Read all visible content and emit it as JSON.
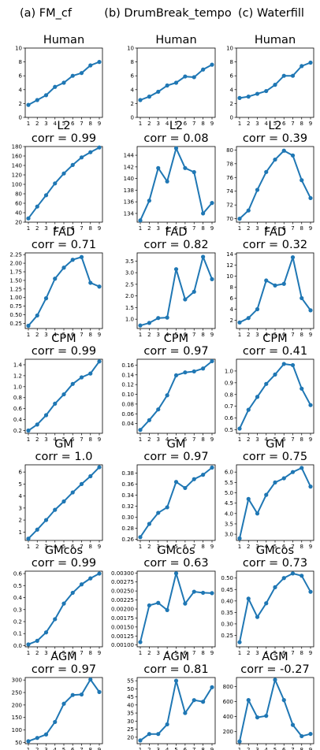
{
  "columns": [
    "(a) FM_cf",
    "(b) DrumBreak_tempo",
    "(c) Waterfill"
  ],
  "chart_data": [
    {
      "type": "line",
      "column": "(a) FM_cf",
      "title": "Human",
      "corr": "",
      "x": [
        1,
        2,
        3,
        4,
        5,
        6,
        7,
        8,
        9
      ],
      "values": [
        1.8,
        2.5,
        3.2,
        4.4,
        5.0,
        6.0,
        6.4,
        7.5,
        8.0
      ],
      "ylim": [
        0,
        10
      ],
      "yticks": [
        "0",
        "2",
        "4",
        "6",
        "8",
        "10"
      ],
      "ytick_values": [
        0,
        2,
        4,
        6,
        8,
        10
      ],
      "xticks": [
        "1",
        "2",
        "3",
        "4",
        "5",
        "6",
        "7",
        "8",
        "9"
      ],
      "color": "#1f77b4"
    },
    {
      "type": "line",
      "column": "(b) DrumBreak_tempo",
      "title": "Human",
      "corr": "",
      "x": [
        1,
        2,
        3,
        4,
        5,
        6,
        7,
        8,
        9
      ],
      "values": [
        2.5,
        3.0,
        3.7,
        4.6,
        5.0,
        5.9,
        5.8,
        6.9,
        7.6
      ],
      "ylim": [
        0,
        10
      ],
      "yticks": [
        "0",
        "2",
        "4",
        "6",
        "8",
        "10"
      ],
      "ytick_values": [
        0,
        2,
        4,
        6,
        8,
        10
      ],
      "xticks": [
        "1",
        "2",
        "3",
        "4",
        "5",
        "6",
        "7",
        "8",
        "9"
      ],
      "color": "#1f77b4"
    },
    {
      "type": "line",
      "column": "(c) Waterfill",
      "title": "Human",
      "corr": "",
      "x": [
        1,
        2,
        3,
        4,
        5,
        6,
        7,
        8,
        9
      ],
      "values": [
        2.8,
        3.0,
        3.4,
        3.8,
        4.7,
        6.0,
        6.0,
        7.4,
        7.9
      ],
      "ylim": [
        0,
        10
      ],
      "yticks": [
        "0",
        "2",
        "4",
        "6",
        "8",
        "10"
      ],
      "ytick_values": [
        0,
        2,
        4,
        6,
        8,
        10
      ],
      "xticks": [
        "1",
        "2",
        "3",
        "4",
        "5",
        "6",
        "7",
        "8",
        "9"
      ],
      "color": "#1f77b4"
    },
    {
      "type": "line",
      "column": "(a) FM_cf",
      "title": "L2",
      "corr": "corr = 0.99",
      "x": [
        1,
        2,
        3,
        4,
        5,
        6,
        7,
        8,
        9
      ],
      "values": [
        28,
        53,
        77,
        102,
        123,
        141,
        157,
        168,
        178
      ],
      "ylim": [
        20,
        180
      ],
      "yticks": [
        "20",
        "40",
        "60",
        "80",
        "100",
        "120",
        "140",
        "160",
        "180"
      ],
      "ytick_values": [
        20,
        40,
        60,
        80,
        100,
        120,
        140,
        160,
        180
      ],
      "xticks": [
        "1",
        "2",
        "3",
        "4",
        "5",
        "6",
        "7",
        "8",
        "9"
      ],
      "color": "#1f77b4"
    },
    {
      "type": "line",
      "column": "(b) DrumBreak_tempo",
      "title": "L2",
      "corr": "corr = 0.08",
      "x": [
        1,
        2,
        3,
        4,
        5,
        6,
        7,
        8,
        9
      ],
      "values": [
        132.8,
        136.2,
        141.8,
        139.5,
        145.2,
        141.8,
        141.1,
        134.0,
        135.8
      ],
      "ylim": [
        132.5,
        145.5
      ],
      "yticks": [
        "134",
        "136",
        "138",
        "140",
        "142",
        "144"
      ],
      "ytick_values": [
        134,
        136,
        138,
        140,
        142,
        144
      ],
      "xticks": [
        "1",
        "2",
        "3",
        "4",
        "5",
        "6",
        "7",
        "8",
        "9"
      ],
      "color": "#1f77b4"
    },
    {
      "type": "line",
      "column": "(c) Waterfill",
      "title": "L2",
      "corr": "corr = 0.39",
      "x": [
        1,
        2,
        3,
        4,
        5,
        6,
        7,
        8,
        9
      ],
      "values": [
        70.0,
        71.2,
        74.2,
        76.8,
        78.6,
        79.9,
        79.2,
        75.6,
        73.0
      ],
      "ylim": [
        69.5,
        80.5
      ],
      "yticks": [
        "70",
        "72",
        "74",
        "76",
        "78",
        "80"
      ],
      "ytick_values": [
        70,
        72,
        74,
        76,
        78,
        80
      ],
      "xticks": [
        "1",
        "2",
        "3",
        "4",
        "5",
        "6",
        "7",
        "8",
        "9"
      ],
      "color": "#1f77b4"
    },
    {
      "type": "line",
      "column": "(a) FM_cf",
      "title": "FAD",
      "corr": "corr = 0.71",
      "x": [
        1,
        2,
        3,
        4,
        5,
        6,
        7,
        8,
        9
      ],
      "values": [
        0.18,
        0.48,
        0.98,
        1.55,
        1.87,
        2.1,
        2.18,
        1.43,
        1.32
      ],
      "ylim": [
        0.1,
        2.3
      ],
      "yticks": [
        "0.25",
        "0.50",
        "0.75",
        "1.00",
        "1.25",
        "1.50",
        "1.75",
        "2.00",
        "2.25"
      ],
      "ytick_values": [
        0.25,
        0.5,
        0.75,
        1.0,
        1.25,
        1.5,
        1.75,
        2.0,
        2.25
      ],
      "xticks": [
        "1",
        "2",
        "3",
        "4",
        "5",
        "6",
        "7",
        "8",
        "9"
      ],
      "color": "#1f77b4"
    },
    {
      "type": "line",
      "column": "(b) DrumBreak_tempo",
      "title": "FAD",
      "corr": "corr = 0.82",
      "x": [
        1,
        2,
        3,
        4,
        5,
        6,
        7,
        8,
        9
      ],
      "values": [
        0.73,
        0.84,
        1.05,
        1.07,
        3.15,
        1.85,
        2.18,
        3.68,
        2.72
      ],
      "ylim": [
        0.6,
        3.85
      ],
      "yticks": [
        "1.0",
        "1.5",
        "2.0",
        "2.5",
        "3.0",
        "3.5"
      ],
      "ytick_values": [
        1.0,
        1.5,
        2.0,
        2.5,
        3.0,
        3.5
      ],
      "xticks": [
        "1",
        "2",
        "3",
        "4",
        "5",
        "6",
        "7",
        "8",
        "9"
      ],
      "color": "#1f77b4"
    },
    {
      "type": "line",
      "column": "(c) Waterfill",
      "title": "FAD",
      "corr": "corr = 0.32",
      "x": [
        1,
        2,
        3,
        4,
        5,
        6,
        7,
        8,
        9
      ],
      "values": [
        1.6,
        2.4,
        4.0,
        9.2,
        8.3,
        8.6,
        13.4,
        6.0,
        3.8
      ],
      "ylim": [
        0.5,
        14.2
      ],
      "yticks": [
        "2",
        "4",
        "6",
        "8",
        "10",
        "12",
        "14"
      ],
      "ytick_values": [
        2,
        4,
        6,
        8,
        10,
        12,
        14
      ],
      "xticks": [
        "1",
        "2",
        "3",
        "4",
        "5",
        "6",
        "7",
        "8",
        "9"
      ],
      "color": "#1f77b4"
    },
    {
      "type": "line",
      "column": "(a) FM_cf",
      "title": "CPM",
      "corr": "corr = 0.99",
      "x": [
        1,
        2,
        3,
        4,
        5,
        6,
        7,
        8,
        9
      ],
      "values": [
        0.2,
        0.31,
        0.48,
        0.69,
        0.86,
        1.05,
        1.17,
        1.24,
        1.46
      ],
      "ylim": [
        0.15,
        1.5
      ],
      "yticks": [
        "0.2",
        "0.4",
        "0.6",
        "0.8",
        "1.0",
        "1.2",
        "1.4"
      ],
      "ytick_values": [
        0.2,
        0.4,
        0.6,
        0.8,
        1.0,
        1.2,
        1.4
      ],
      "xticks": [
        "1",
        "2",
        "3",
        "4",
        "5",
        "6",
        "7",
        "8",
        "9"
      ],
      "color": "#1f77b4"
    },
    {
      "type": "line",
      "column": "(b) DrumBreak_tempo",
      "title": "CPM",
      "corr": "corr = 0.97",
      "x": [
        1,
        2,
        3,
        4,
        5,
        6,
        7,
        8,
        9
      ],
      "values": [
        0.027,
        0.047,
        0.069,
        0.098,
        0.139,
        0.145,
        0.147,
        0.153,
        0.168
      ],
      "ylim": [
        0.02,
        0.172
      ],
      "yticks": [
        "0.04",
        "0.06",
        "0.08",
        "0.10",
        "0.12",
        "0.14",
        "0.16"
      ],
      "ytick_values": [
        0.04,
        0.06,
        0.08,
        0.1,
        0.12,
        0.14,
        0.16
      ],
      "xticks": [
        "1",
        "2",
        "3",
        "4",
        "5",
        "6",
        "7",
        "8",
        "9"
      ],
      "color": "#1f77b4"
    },
    {
      "type": "line",
      "column": "(c) Waterfill",
      "title": "CPM",
      "corr": "corr = 0.41",
      "x": [
        1,
        2,
        3,
        4,
        5,
        6,
        7,
        8,
        9
      ],
      "values": [
        0.51,
        0.67,
        0.78,
        0.89,
        0.97,
        1.06,
        1.05,
        0.85,
        0.71
      ],
      "ylim": [
        0.47,
        1.1
      ],
      "yticks": [
        "0.5",
        "0.6",
        "0.7",
        "0.8",
        "0.9",
        "1.0"
      ],
      "ytick_values": [
        0.5,
        0.6,
        0.7,
        0.8,
        0.9,
        1.0
      ],
      "xticks": [
        "1",
        "2",
        "3",
        "4",
        "5",
        "6",
        "7",
        "8",
        "9"
      ],
      "color": "#1f77b4"
    },
    {
      "type": "line",
      "column": "(a) FM_cf",
      "title": "GM",
      "corr": "corr = 1.0",
      "x": [
        1,
        2,
        3,
        4,
        5,
        6,
        7,
        8,
        9
      ],
      "values": [
        0.45,
        1.2,
        2.0,
        2.85,
        3.55,
        4.3,
        5.0,
        5.65,
        6.4
      ],
      "ylim": [
        0.3,
        6.6
      ],
      "yticks": [
        "1",
        "2",
        "3",
        "4",
        "5",
        "6"
      ],
      "ytick_values": [
        1,
        2,
        3,
        4,
        5,
        6
      ],
      "xticks": [
        "1",
        "2",
        "3",
        "4",
        "5",
        "6",
        "7",
        "8",
        "9"
      ],
      "color": "#1f77b4"
    },
    {
      "type": "line",
      "column": "(b) DrumBreak_tempo",
      "title": "GM",
      "corr": "corr = 0.97",
      "x": [
        1,
        2,
        3,
        4,
        5,
        6,
        7,
        8,
        9
      ],
      "values": [
        0.264,
        0.288,
        0.308,
        0.318,
        0.364,
        0.353,
        0.369,
        0.377,
        0.39
      ],
      "ylim": [
        0.258,
        0.395
      ],
      "yticks": [
        "0.26",
        "0.28",
        "0.30",
        "0.32",
        "0.34",
        "0.36",
        "0.38"
      ],
      "ytick_values": [
        0.26,
        0.28,
        0.3,
        0.32,
        0.34,
        0.36,
        0.38
      ],
      "xticks": [
        "1",
        "2",
        "3",
        "4",
        "5",
        "6",
        "7",
        "8",
        "9"
      ],
      "color": "#1f77b4"
    },
    {
      "type": "line",
      "column": "(c) Waterfill",
      "title": "GM",
      "corr": "corr = 0.75",
      "x": [
        1,
        2,
        3,
        4,
        5,
        6,
        7,
        8,
        9
      ],
      "values": [
        2.8,
        4.7,
        4.0,
        4.9,
        5.5,
        5.7,
        6.0,
        6.2,
        5.3
      ],
      "ylim": [
        2.7,
        6.35
      ],
      "yticks": [
        "3.0",
        "3.5",
        "4.0",
        "4.5",
        "5.0",
        "5.5",
        "6.0"
      ],
      "ytick_values": [
        3.0,
        3.5,
        4.0,
        4.5,
        5.0,
        5.5,
        6.0
      ],
      "xticks": [
        "1",
        "2",
        "3",
        "4",
        "5",
        "6",
        "7",
        "8",
        "9"
      ],
      "color": "#1f77b4"
    },
    {
      "type": "line",
      "column": "(a) FM_cf",
      "title": "GMcos",
      "corr": "corr = 0.99",
      "x": [
        1,
        2,
        3,
        4,
        5,
        6,
        7,
        8,
        9
      ],
      "values": [
        0.01,
        0.04,
        0.11,
        0.22,
        0.35,
        0.44,
        0.51,
        0.56,
        0.6
      ],
      "ylim": [
        -0.01,
        0.62
      ],
      "yticks": [
        "0.0",
        "0.1",
        "0.2",
        "0.3",
        "0.4",
        "0.5",
        "0.6"
      ],
      "ytick_values": [
        0.0,
        0.1,
        0.2,
        0.3,
        0.4,
        0.5,
        0.6
      ],
      "xticks": [
        "1",
        "2",
        "3",
        "4",
        "5",
        "6",
        "7",
        "8",
        "9"
      ],
      "color": "#1f77b4"
    },
    {
      "type": "line",
      "column": "(b) DrumBreak_tempo",
      "title": "GMcos",
      "corr": "corr = 0.63",
      "x": [
        1,
        2,
        3,
        4,
        5,
        6,
        7,
        8,
        9
      ],
      "values": [
        0.00108,
        0.0021,
        0.00217,
        0.00197,
        0.00299,
        0.00215,
        0.00248,
        0.00245,
        0.00244
      ],
      "ylim": [
        0.00095,
        0.00305
      ],
      "yticks": [
        "0.00100",
        "0.00125",
        "0.00150",
        "0.00175",
        "0.00200",
        "0.00225",
        "0.00250",
        "0.00275",
        "0.00300"
      ],
      "ytick_values": [
        0.001,
        0.00125,
        0.0015,
        0.00175,
        0.002,
        0.00225,
        0.0025,
        0.00275,
        0.003
      ],
      "xticks": [
        "1",
        "2",
        "3",
        "4",
        "5",
        "6",
        "7",
        "8",
        "9"
      ],
      "color": "#1f77b4"
    },
    {
      "type": "line",
      "column": "(c) Waterfill",
      "title": "GMcos",
      "corr": "corr = 0.73",
      "x": [
        1,
        2,
        3,
        4,
        5,
        6,
        7,
        8,
        9
      ],
      "values": [
        0.22,
        0.41,
        0.33,
        0.39,
        0.46,
        0.5,
        0.52,
        0.51,
        0.44
      ],
      "ylim": [
        0.2,
        0.53
      ],
      "yticks": [
        "0.25",
        "0.30",
        "0.35",
        "0.40",
        "0.45",
        "0.50"
      ],
      "ytick_values": [
        0.25,
        0.3,
        0.35,
        0.4,
        0.45,
        0.5
      ],
      "xticks": [
        "1",
        "2",
        "3",
        "4",
        "5",
        "6",
        "7",
        "8",
        "9"
      ],
      "color": "#1f77b4"
    },
    {
      "type": "line",
      "column": "(a) FM_cf",
      "title": "AGM",
      "corr": "corr = 0.97",
      "x": [
        1,
        2,
        3,
        4,
        5,
        6,
        7,
        8,
        9
      ],
      "values": [
        55,
        68,
        82,
        132,
        205,
        240,
        242,
        302,
        252
      ],
      "ylim": [
        45,
        310
      ],
      "yticks": [
        "50",
        "100",
        "150",
        "200",
        "250",
        "300"
      ],
      "ytick_values": [
        50,
        100,
        150,
        200,
        250,
        300
      ],
      "xticks": [
        "1",
        "2",
        "3",
        "4",
        "5",
        "6",
        "7",
        "8",
        "9"
      ],
      "color": "#1f77b4"
    },
    {
      "type": "line",
      "column": "(b) DrumBreak_tempo",
      "title": "AGM",
      "corr": "corr = 0.81",
      "x": [
        1,
        2,
        3,
        4,
        5,
        6,
        7,
        8,
        9
      ],
      "values": [
        18,
        22,
        22,
        28,
        55,
        35,
        43,
        42,
        51
      ],
      "ylim": [
        16,
        57
      ],
      "yticks": [
        "20",
        "25",
        "30",
        "35",
        "40",
        "45",
        "50",
        "55"
      ],
      "ytick_values": [
        20,
        25,
        30,
        35,
        40,
        45,
        50,
        55
      ],
      "xticks": [
        "1",
        "2",
        "3",
        "4",
        "5",
        "6",
        "7",
        "8",
        "9"
      ],
      "color": "#1f77b4"
    },
    {
      "type": "line",
      "column": "(c) Waterfill",
      "title": "AGM",
      "corr": "corr = -0.27",
      "x": [
        1,
        2,
        3,
        4,
        5,
        6,
        7,
        8,
        9
      ],
      "values": [
        70,
        620,
        390,
        410,
        890,
        620,
        290,
        140,
        170
      ],
      "ylim": [
        40,
        920
      ],
      "yticks": [
        "200",
        "400",
        "600",
        "800"
      ],
      "ytick_values": [
        200,
        400,
        600,
        800
      ],
      "xticks": [
        "1",
        "2",
        "3",
        "4",
        "5",
        "6",
        "7",
        "8",
        "9"
      ],
      "color": "#1f77b4"
    }
  ]
}
